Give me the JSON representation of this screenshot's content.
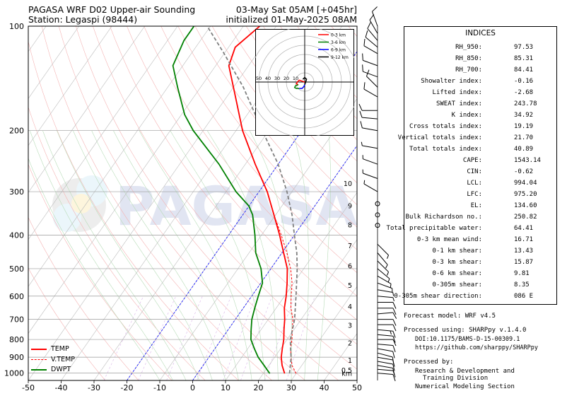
{
  "header": {
    "title_left": "PAGASA WRF D02 Upper-air Sounding",
    "station": "Station: Legaspi (98444)",
    "valid_time": "03-May Sat 05AM [+045hr]",
    "init_time": "initialized 01-May-2025 08AM"
  },
  "watermark": "PAGASA",
  "chart_data": {
    "type": "skew-t",
    "pressure_ticks": [
      100,
      200,
      300,
      400,
      500,
      600,
      700,
      800,
      900,
      1000
    ],
    "temp_ticks": [
      -50,
      -40,
      -30,
      -20,
      -10,
      0,
      10,
      20,
      30,
      40,
      50
    ],
    "xlim": [
      -50,
      50
    ],
    "ylim": [
      1050,
      100
    ],
    "log_p": true,
    "height_ticks": [
      {
        "label": "km",
        "p": 1004
      },
      {
        "label": "0.5",
        "p": 983
      },
      {
        "label": "1",
        "p": 920
      },
      {
        "label": "2",
        "p": 820
      },
      {
        "label": "3",
        "p": 730
      },
      {
        "label": "4",
        "p": 645
      },
      {
        "label": "5",
        "p": 560
      },
      {
        "label": "6",
        "p": 492
      },
      {
        "label": "7",
        "p": 430
      },
      {
        "label": "8",
        "p": 375
      },
      {
        "label": "9",
        "p": 330
      },
      {
        "label": "10",
        "p": 285
      }
    ],
    "series": [
      {
        "name": "TEMP",
        "color": "#ff0000",
        "points": [
          [
            1003,
            26.5
          ],
          [
            950,
            24
          ],
          [
            900,
            22
          ],
          [
            850,
            20.5
          ],
          [
            800,
            19
          ],
          [
            750,
            17
          ],
          [
            700,
            15
          ],
          [
            650,
            12.5
          ],
          [
            600,
            10.5
          ],
          [
            550,
            8
          ],
          [
            500,
            5
          ],
          [
            450,
            0.5
          ],
          [
            400,
            -4.5
          ],
          [
            350,
            -10.5
          ],
          [
            300,
            -17.5
          ],
          [
            250,
            -27
          ],
          [
            200,
            -38
          ],
          [
            150,
            -50
          ],
          [
            130,
            -56
          ],
          [
            115,
            -58
          ],
          [
            100,
            -55
          ]
        ]
      },
      {
        "name": "V.TEMP",
        "color": "#ff0000",
        "dashed": true,
        "points": [
          [
            1003,
            30
          ],
          [
            950,
            27
          ],
          [
            900,
            25
          ],
          [
            850,
            23
          ],
          [
            800,
            21.5
          ],
          [
            750,
            19.5
          ],
          [
            700,
            17.5
          ],
          [
            650,
            14.5
          ],
          [
            600,
            12
          ],
          [
            550,
            9.5
          ],
          [
            500,
            6
          ],
          [
            450,
            1.5
          ],
          [
            400,
            -4
          ],
          [
            350,
            -10.5
          ],
          [
            300,
            -17.5
          ],
          [
            250,
            -27
          ],
          [
            200,
            -38
          ],
          [
            150,
            -50
          ],
          [
            130,
            -56
          ],
          [
            115,
            -58
          ],
          [
            100,
            -55
          ]
        ]
      },
      {
        "name": "DWPT",
        "color": "#008000",
        "points": [
          [
            1003,
            22
          ],
          [
            950,
            18.5
          ],
          [
            900,
            15
          ],
          [
            850,
            12
          ],
          [
            800,
            9
          ],
          [
            750,
            7
          ],
          [
            700,
            5
          ],
          [
            650,
            3.5
          ],
          [
            600,
            2
          ],
          [
            550,
            0.5
          ],
          [
            500,
            -3
          ],
          [
            450,
            -8
          ],
          [
            400,
            -12
          ],
          [
            350,
            -17
          ],
          [
            330,
            -20
          ],
          [
            300,
            -27
          ],
          [
            250,
            -38
          ],
          [
            200,
            -53
          ],
          [
            180,
            -59
          ],
          [
            150,
            -67
          ],
          [
            130,
            -73
          ],
          [
            110,
            -75
          ],
          [
            100,
            -75
          ]
        ]
      },
      {
        "name": "parcel",
        "color": "#808080",
        "dashed": true,
        "points": [
          [
            1003,
            28
          ],
          [
            950,
            26.5
          ],
          [
            900,
            25
          ],
          [
            850,
            23
          ],
          [
            800,
            21
          ],
          [
            700,
            18
          ],
          [
            600,
            13.5
          ],
          [
            500,
            8
          ],
          [
            450,
            4.5
          ],
          [
            400,
            0
          ],
          [
            350,
            -5
          ],
          [
            300,
            -11.5
          ],
          [
            250,
            -20
          ],
          [
            200,
            -32
          ],
          [
            150,
            -47
          ],
          [
            120,
            -60
          ],
          [
            100,
            -71
          ]
        ]
      }
    ],
    "legend": [
      "TEMP",
      "V.TEMP",
      "DWPT"
    ],
    "legend_position": "bottom-left"
  },
  "hodograph": {
    "ring_labels": [
      "50",
      "40",
      "30",
      "20",
      "10"
    ],
    "legend": [
      {
        "label": "0-3 km",
        "color": "#ff0000"
      },
      {
        "label": "3-6 km",
        "color": "#008000"
      },
      {
        "label": "6-9 km",
        "color": "#0000ff"
      },
      {
        "label": "9-12 km",
        "color": "#000000"
      }
    ],
    "segments": [
      {
        "color": "#ff0000",
        "points": [
          [
            0,
            0
          ],
          [
            -3,
            1
          ],
          [
            -6,
            2
          ],
          [
            -8,
            0
          ],
          [
            -9,
            -2
          ],
          [
            -7,
            -3
          ]
        ]
      },
      {
        "color": "#008000",
        "points": [
          [
            -7,
            -3
          ],
          [
            -10,
            -4
          ],
          [
            -11,
            -6
          ],
          [
            -9,
            -7
          ],
          [
            -6,
            -7
          ]
        ]
      },
      {
        "color": "#0000ff",
        "points": [
          [
            -6,
            -7
          ],
          [
            -3,
            -7
          ],
          [
            -1,
            -5
          ],
          [
            0,
            -3
          ]
        ]
      },
      {
        "color": "#000000",
        "points": [
          [
            0,
            -3
          ],
          [
            1,
            0
          ],
          [
            2,
            3
          ],
          [
            0,
            5
          ],
          [
            -2,
            3
          ]
        ]
      }
    ]
  },
  "wind_barbs": [
    {
      "p": 1000,
      "dir": 95,
      "spd": 10
    },
    {
      "p": 975,
      "dir": 95,
      "spd": 10
    },
    {
      "p": 950,
      "dir": 100,
      "spd": 10
    },
    {
      "p": 925,
      "dir": 100,
      "spd": 10
    },
    {
      "p": 900,
      "dir": 100,
      "spd": 10
    },
    {
      "p": 875,
      "dir": 105,
      "spd": 10
    },
    {
      "p": 850,
      "dir": 100,
      "spd": 10
    },
    {
      "p": 825,
      "dir": 95,
      "spd": 10
    },
    {
      "p": 800,
      "dir": 90,
      "spd": 10
    },
    {
      "p": 775,
      "dir": 95,
      "spd": 10
    },
    {
      "p": 750,
      "dir": 95,
      "spd": 15
    },
    {
      "p": 725,
      "dir": 90,
      "spd": 10
    },
    {
      "p": 700,
      "dir": 90,
      "spd": 10
    },
    {
      "p": 675,
      "dir": 85,
      "spd": 10
    },
    {
      "p": 650,
      "dir": 90,
      "spd": 10
    },
    {
      "p": 625,
      "dir": 90,
      "spd": 10
    },
    {
      "p": 600,
      "dir": 95,
      "spd": 5
    },
    {
      "p": 575,
      "dir": 100,
      "spd": 5
    },
    {
      "p": 550,
      "dir": 110,
      "spd": 5
    },
    {
      "p": 525,
      "dir": 120,
      "spd": 5
    },
    {
      "p": 500,
      "dir": 130,
      "spd": 5
    },
    {
      "p": 475,
      "dir": 135,
      "spd": 5
    },
    {
      "p": 450,
      "dir": 140,
      "spd": 5
    },
    {
      "p": 425,
      "dir": 135,
      "spd": 5
    },
    {
      "p": 375,
      "dir": 0,
      "spd": 0
    },
    {
      "p": 350,
      "dir": 0,
      "spd": 0
    },
    {
      "p": 325,
      "dir": 0,
      "spd": 0
    },
    {
      "p": 300,
      "dir": 300,
      "spd": 5
    },
    {
      "p": 275,
      "dir": 290,
      "spd": 5
    },
    {
      "p": 250,
      "dir": 290,
      "spd": 5
    },
    {
      "p": 225,
      "dir": 280,
      "spd": 5
    },
    {
      "p": 200,
      "dir": 280,
      "spd": 10
    },
    {
      "p": 185,
      "dir": 275,
      "spd": 10
    },
    {
      "p": 175,
      "dir": 270,
      "spd": 10
    },
    {
      "p": 160,
      "dir": 300,
      "spd": 10
    },
    {
      "p": 150,
      "dir": 315,
      "spd": 10
    },
    {
      "p": 140,
      "dir": 290,
      "spd": 10
    },
    {
      "p": 130,
      "dir": 290,
      "spd": 10
    },
    {
      "p": 120,
      "dir": 300,
      "spd": 10
    },
    {
      "p": 115,
      "dir": 310,
      "spd": 10
    },
    {
      "p": 110,
      "dir": 320,
      "spd": 10
    },
    {
      "p": 105,
      "dir": 330,
      "spd": 10
    },
    {
      "p": 100,
      "dir": 340,
      "spd": 10
    }
  ],
  "legend": {
    "temp": "TEMP",
    "vtemp": "V.TEMP",
    "dwpt": "DWPT"
  },
  "indices": {
    "title": "INDICES",
    "rows": [
      {
        "label": "RH_950:",
        "value": "97.53"
      },
      {
        "label": "RH_850:",
        "value": "85.31"
      },
      {
        "label": "RH_700:",
        "value": "84.41"
      },
      {
        "label": "Showalter index:",
        "value": "-0.16"
      },
      {
        "label": "Lifted index:",
        "value": "-2.68"
      },
      {
        "label": "SWEAT index:",
        "value": "243.78"
      },
      {
        "label": "K index:",
        "value": "34.92"
      },
      {
        "label": "Cross totals index:",
        "value": "19.19"
      },
      {
        "label": "Vertical totals index:",
        "value": "21.70"
      },
      {
        "label": "Total totals index:",
        "value": "40.89"
      },
      {
        "label": "CAPE:",
        "value": "1543.14"
      },
      {
        "label": "CIN:",
        "value": "-0.62"
      },
      {
        "label": "LCL:",
        "value": "994.04"
      },
      {
        "label": "LFC:",
        "value": "975.20"
      },
      {
        "label": "EL:",
        "value": "134.60"
      },
      {
        "label": "Bulk Richardson no.:",
        "value": "250.82"
      },
      {
        "label": "Total precipitable water:",
        "value": "64.41"
      },
      {
        "label": "0-3 km mean wind:",
        "value": "16.71"
      },
      {
        "label": "0-1 km shear:",
        "value": "13.43"
      },
      {
        "label": "0-3 km shear:",
        "value": "15.87"
      },
      {
        "label": "0-6 km shear:",
        "value": "9.81"
      },
      {
        "label": "0-305m shear:",
        "value": "8.35"
      },
      {
        "label": "0-305m shear direction:",
        "value": "086 E"
      }
    ]
  },
  "footer": {
    "forecast_model": "Forecast model: WRF v4.5",
    "processed_using": "Processed using: SHARPpy v.1.4.0",
    "doi": "DOI:10.1175/BAMS-D-15-00309.1",
    "github": "https://github.com/sharppy/SHARPpy",
    "processed_by": "Processed by:",
    "org_line1": "Research & Development and",
    "org_line2": "Training Division",
    "org_line3": "Numerical Modeling Section"
  }
}
